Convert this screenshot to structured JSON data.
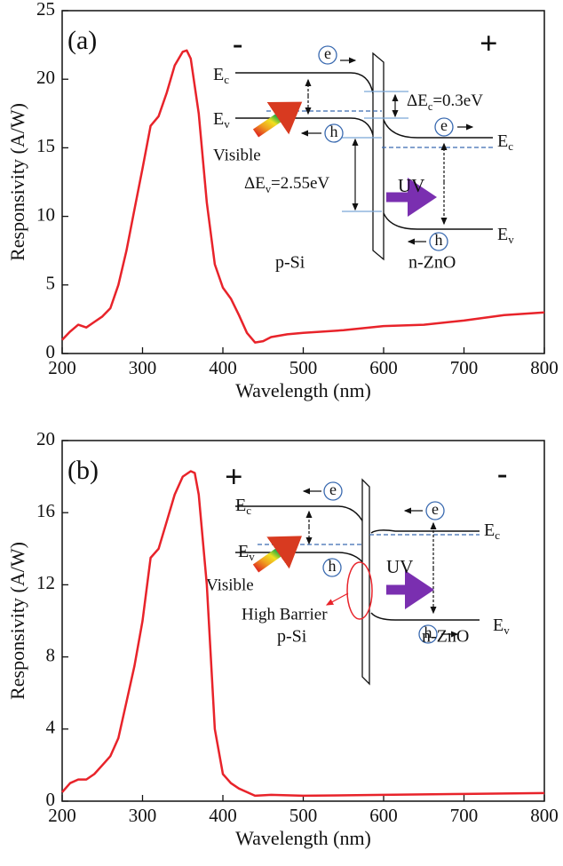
{
  "chart_data": [
    {
      "type": "line",
      "panel_label": "(a)",
      "xlabel": "Wavelength (nm)",
      "ylabel": "Responsivity (A/W)",
      "color": "#e8232a",
      "xlim": [
        200,
        800
      ],
      "xticks": [
        200,
        300,
        400,
        500,
        600,
        700,
        800
      ],
      "ylim": [
        0,
        25
      ],
      "yticks": [
        0,
        5,
        10,
        15,
        20,
        25
      ],
      "x": [
        200,
        210,
        220,
        230,
        240,
        250,
        260,
        270,
        280,
        290,
        300,
        310,
        320,
        330,
        340,
        350,
        355,
        360,
        370,
        380,
        390,
        400,
        410,
        420,
        430,
        440,
        450,
        460,
        480,
        500,
        550,
        600,
        650,
        700,
        750,
        800
      ],
      "values": [
        1.0,
        1.6,
        2.1,
        1.9,
        2.3,
        2.7,
        3.3,
        5.0,
        7.5,
        10.5,
        13.5,
        16.6,
        17.3,
        19.0,
        21.0,
        22.0,
        22.1,
        21.5,
        17.5,
        11.0,
        6.5,
        4.8,
        4.0,
        2.8,
        1.5,
        0.8,
        0.9,
        1.2,
        1.4,
        1.5,
        1.7,
        2.0,
        2.1,
        2.4,
        2.8,
        3.0
      ],
      "annotations": {
        "minus": "-",
        "plus": "+",
        "ec_left": {
          "base": "E",
          "sub": "c"
        },
        "ev_left": {
          "base": "E",
          "sub": "v"
        },
        "e_left": "e",
        "h_left": "h",
        "delta_ec": {
          "base": "ΔE",
          "sub": "c",
          "tail": "=0.3eV"
        },
        "e_right": "e",
        "ec_right": {
          "base": "E",
          "sub": "c"
        },
        "visible": "Visible",
        "delta_ev": {
          "base": "ΔE",
          "sub": "v",
          "tail": "=2.55eV"
        },
        "uv": "UV",
        "ev_right": {
          "base": "E",
          "sub": "v"
        },
        "h_right": "h",
        "p_si": "p-Si",
        "n_zno": "n-ZnO"
      }
    },
    {
      "type": "line",
      "panel_label": "(b)",
      "xlabel": "Wavelength (nm)",
      "ylabel": "Responsivity (A/W)",
      "color": "#e8232a",
      "xlim": [
        200,
        800
      ],
      "xticks": [
        200,
        300,
        400,
        500,
        600,
        700,
        800
      ],
      "ylim": [
        0,
        20
      ],
      "yticks": [
        0,
        4,
        8,
        12,
        16,
        20
      ],
      "x": [
        200,
        210,
        220,
        230,
        240,
        250,
        260,
        270,
        280,
        290,
        300,
        310,
        320,
        330,
        340,
        350,
        360,
        365,
        370,
        380,
        390,
        400,
        410,
        420,
        440,
        460,
        500,
        600,
        700,
        800
      ],
      "values": [
        0.5,
        1.0,
        1.2,
        1.2,
        1.5,
        2.0,
        2.5,
        3.5,
        5.5,
        7.5,
        10.0,
        13.5,
        14.0,
        15.5,
        17.0,
        18.0,
        18.3,
        18.2,
        17.0,
        12.0,
        4.0,
        1.5,
        1.0,
        0.7,
        0.3,
        0.35,
        0.3,
        0.35,
        0.4,
        0.45
      ],
      "annotations": {
        "plus": "+",
        "minus": "-",
        "ec_left": {
          "base": "E",
          "sub": "c"
        },
        "e_left": "e",
        "ev_left": {
          "base": "E",
          "sub": "v"
        },
        "h_left": "h",
        "visible": "Visible",
        "high_barrier": "High Barrier",
        "uv": "UV",
        "e_right": "e",
        "ec_right": {
          "base": "E",
          "sub": "c"
        },
        "h_right": "h",
        "ev_right": {
          "base": "E",
          "sub": "v"
        },
        "p_si": "p-Si",
        "n_zno": "n-ZnO"
      }
    }
  ]
}
